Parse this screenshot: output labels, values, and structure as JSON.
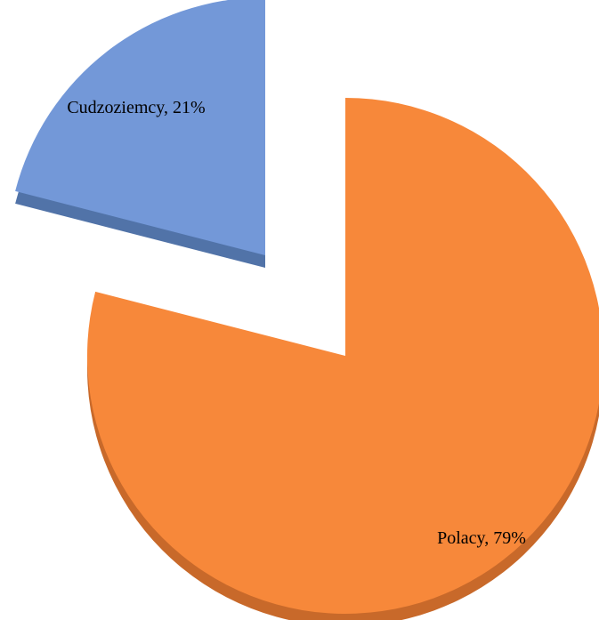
{
  "chart_data": {
    "type": "pie",
    "style": "3d-exploded",
    "categories": [
      "Cudzoziemcy",
      "Polacy"
    ],
    "values": [
      21,
      79
    ],
    "labels": [
      "Cudzoziemcy, 21%",
      "Polacy, 79%"
    ],
    "colors": [
      "#7398d8",
      "#f7883a"
    ],
    "side_colors": [
      "#5173a8",
      "#c8692a"
    ],
    "exploded": [
      "Cudzoziemcy"
    ],
    "legend": "none",
    "title": ""
  }
}
